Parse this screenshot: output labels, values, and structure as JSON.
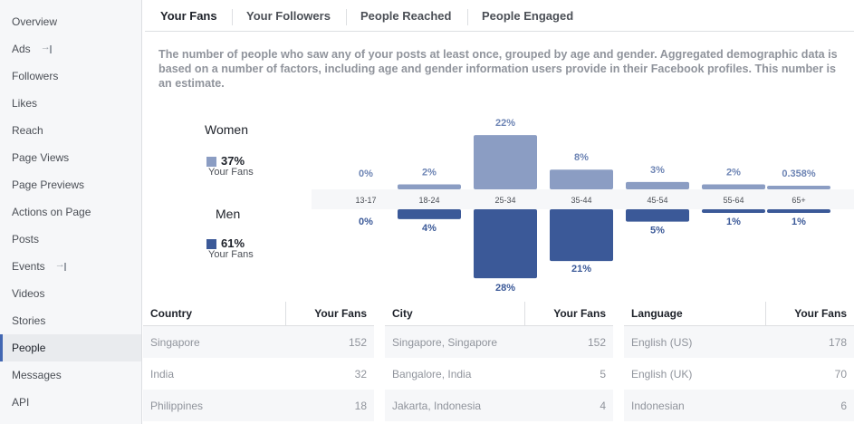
{
  "sidebar": {
    "items": [
      {
        "label": "Overview",
        "ext": false,
        "active": false
      },
      {
        "label": "Ads",
        "ext": true,
        "active": false
      },
      {
        "label": "Followers",
        "ext": false,
        "active": false
      },
      {
        "label": "Likes",
        "ext": false,
        "active": false
      },
      {
        "label": "Reach",
        "ext": false,
        "active": false
      },
      {
        "label": "Page Views",
        "ext": false,
        "active": false
      },
      {
        "label": "Page Previews",
        "ext": false,
        "active": false
      },
      {
        "label": "Actions on Page",
        "ext": false,
        "active": false
      },
      {
        "label": "Posts",
        "ext": false,
        "active": false
      },
      {
        "label": "Events",
        "ext": true,
        "active": false
      },
      {
        "label": "Videos",
        "ext": false,
        "active": false
      },
      {
        "label": "Stories",
        "ext": false,
        "active": false
      },
      {
        "label": "People",
        "ext": false,
        "active": true
      },
      {
        "label": "Messages",
        "ext": false,
        "active": false
      },
      {
        "label": "API",
        "ext": false,
        "active": false
      }
    ]
  },
  "tabs": [
    {
      "label": "Your Fans",
      "active": true
    },
    {
      "label": "Your Followers",
      "active": false
    },
    {
      "label": "People Reached",
      "active": false
    },
    {
      "label": "People Engaged",
      "active": false
    }
  ],
  "description": "The number of people who saw any of your posts at least once, grouped by age and gender. Aggregated demographic data is based on a number of factors, including age and gender information users provide in their Facebook profiles. This number is an estimate.",
  "legend": {
    "women": {
      "label": "Women",
      "pct": "37%",
      "sub": "Your Fans",
      "color": "#8b9dc3"
    },
    "men": {
      "label": "Men",
      "pct": "61%",
      "sub": "Your Fans",
      "color": "#3b5998"
    }
  },
  "chart_data": {
    "type": "bar",
    "categories": [
      "13-17",
      "18-24",
      "25-34",
      "35-44",
      "45-54",
      "55-64",
      "65+"
    ],
    "series": [
      {
        "name": "Women",
        "values": [
          0,
          2,
          22,
          8,
          3,
          2,
          0.358
        ],
        "labels": [
          "0%",
          "2%",
          "22%",
          "8%",
          "3%",
          "2%",
          "0.358%"
        ],
        "color": "#8b9dc3"
      },
      {
        "name": "Men",
        "values": [
          0,
          4,
          28,
          21,
          5,
          1,
          1
        ],
        "labels": [
          "0%",
          "4%",
          "28%",
          "21%",
          "5%",
          "1%",
          "1%"
        ],
        "color": "#3b5998"
      }
    ]
  },
  "tables": [
    {
      "col1": "Country",
      "col2": "Your Fans",
      "rows": [
        [
          "Singapore",
          "152"
        ],
        [
          "India",
          "32"
        ],
        [
          "Philippines",
          "18"
        ]
      ]
    },
    {
      "col1": "City",
      "col2": "Your Fans",
      "rows": [
        [
          "Singapore, Singapore",
          "152"
        ],
        [
          "Bangalore, India",
          "5"
        ],
        [
          "Jakarta, Indonesia",
          "4"
        ]
      ]
    },
    {
      "col1": "Language",
      "col2": "Your Fans",
      "rows": [
        [
          "English (US)",
          "178"
        ],
        [
          "English (UK)",
          "70"
        ],
        [
          "Indonesian",
          "6"
        ]
      ]
    }
  ]
}
